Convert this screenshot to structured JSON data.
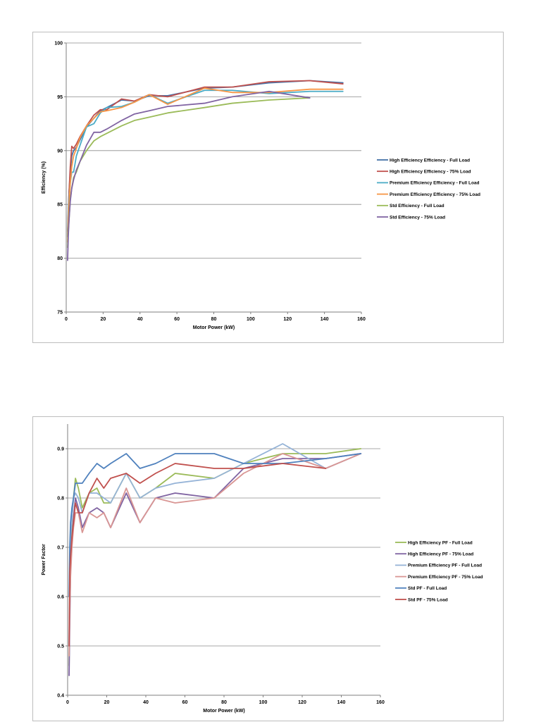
{
  "chart_data": [
    {
      "type": "line",
      "title": "",
      "xlabel": "Motor Power (kW)",
      "ylabel": "Efficiency (%)",
      "xlim": [
        0,
        160
      ],
      "ylim": [
        75,
        100
      ],
      "xticks": [
        0,
        20,
        40,
        60,
        80,
        100,
        120,
        140,
        160
      ],
      "yticks": [
        75,
        80,
        85,
        90,
        95,
        100
      ],
      "grid": "horizontal",
      "legend_position": "right",
      "series": [
        {
          "name": "High Efficiency Efficiency - Full Load",
          "color": "#4472a8",
          "points": [
            [
              0.75,
              82.5
            ],
            [
              1.1,
              84.5
            ],
            [
              1.5,
              86
            ],
            [
              2.2,
              88
            ],
            [
              3,
              89.5
            ],
            [
              4,
              90
            ],
            [
              5.5,
              90.3
            ],
            [
              7.5,
              91
            ],
            [
              11,
              92.2
            ],
            [
              15,
              93
            ],
            [
              18.5,
              93.7
            ],
            [
              22,
              94
            ],
            [
              30,
              94.7
            ],
            [
              37,
              94.6
            ],
            [
              45,
              95.1
            ],
            [
              55,
              95.1
            ],
            [
              75,
              95.8
            ],
            [
              90,
              95.9
            ],
            [
              110,
              96.3
            ],
            [
              132,
              96.5
            ],
            [
              150,
              96.3
            ]
          ]
        },
        {
          "name": "High Efficiency Efficiency - 75% Load",
          "color": "#c0504d",
          "points": [
            [
              0.75,
              82
            ],
            [
              1.1,
              84
            ],
            [
              1.5,
              86
            ],
            [
              2.2,
              88.5
            ],
            [
              3,
              90.4
            ],
            [
              4,
              90.2
            ],
            [
              5.5,
              90.6
            ],
            [
              7.5,
              91.3
            ],
            [
              11,
              92.3
            ],
            [
              15,
              93.3
            ],
            [
              18.5,
              93.8
            ],
            [
              22,
              93.8
            ],
            [
              30,
              94.8
            ],
            [
              37,
              94.6
            ],
            [
              45,
              95.2
            ],
            [
              55,
              95
            ],
            [
              75,
              95.9
            ],
            [
              90,
              95.9
            ],
            [
              110,
              96.4
            ],
            [
              132,
              96.5
            ],
            [
              150,
              96.2
            ]
          ]
        },
        {
          "name": "Premium Efficiency Efficiency - Full Load",
          "color": "#4bacc6",
          "points": [
            [
              0.75,
              82
            ],
            [
              1.1,
              84
            ],
            [
              1.5,
              85.5
            ],
            [
              2.2,
              87
            ],
            [
              3,
              88
            ],
            [
              4,
              88
            ],
            [
              5.5,
              89.5
            ],
            [
              7.5,
              90.5
            ],
            [
              11,
              92.2
            ],
            [
              15,
              92.5
            ],
            [
              18.5,
              93.5
            ],
            [
              22,
              94
            ],
            [
              30,
              94.1
            ],
            [
              37,
              94.5
            ],
            [
              45,
              95.2
            ],
            [
              55,
              94.4
            ],
            [
              75,
              95.6
            ],
            [
              90,
              95.6
            ],
            [
              110,
              95.3
            ],
            [
              132,
              95.5
            ],
            [
              150,
              95.5
            ]
          ]
        },
        {
          "name": "Premium Efficiency Efficiency - 75% Load",
          "color": "#f79646",
          "points": [
            [
              0.75,
              81.5
            ],
            [
              1.1,
              83.5
            ],
            [
              1.5,
              85
            ],
            [
              2.2,
              87
            ],
            [
              3,
              88.5
            ],
            [
              4,
              89.5
            ],
            [
              5.5,
              90.2
            ],
            [
              7.5,
              91.2
            ],
            [
              11,
              92.3
            ],
            [
              15,
              93
            ],
            [
              18.5,
              93.6
            ],
            [
              22,
              93.7
            ],
            [
              30,
              94
            ],
            [
              37,
              94.5
            ],
            [
              45,
              95.2
            ],
            [
              55,
              94.3
            ],
            [
              75,
              95.8
            ],
            [
              90,
              95.4
            ],
            [
              110,
              95.4
            ],
            [
              132,
              95.7
            ],
            [
              150,
              95.7
            ]
          ]
        },
        {
          "name": "Std Efficiency - Full Load",
          "color": "#9bbb59",
          "points": [
            [
              0.75,
              81
            ],
            [
              1.1,
              82.5
            ],
            [
              1.5,
              83.5
            ],
            [
              2.2,
              85.5
            ],
            [
              3,
              86.5
            ],
            [
              4,
              87.5
            ],
            [
              5.5,
              88
            ],
            [
              7.5,
              89
            ],
            [
              11,
              90
            ],
            [
              15,
              90.9
            ],
            [
              18.5,
              91.3
            ],
            [
              22,
              91.6
            ],
            [
              30,
              92.3
            ],
            [
              37,
              92.8
            ],
            [
              45,
              93.1
            ],
            [
              55,
              93.5
            ],
            [
              75,
              94
            ],
            [
              90,
              94.4
            ],
            [
              110,
              94.7
            ],
            [
              132,
              94.9
            ]
          ]
        },
        {
          "name": "Std Efficiency - 75% Load",
          "color": "#8064a2",
          "points": [
            [
              0.75,
              79.8
            ],
            [
              1.1,
              82
            ],
            [
              1.5,
              83.5
            ],
            [
              2.2,
              85.3
            ],
            [
              3,
              86.5
            ],
            [
              4,
              87.3
            ],
            [
              5.5,
              88.2
            ],
            [
              7.5,
              89
            ],
            [
              11,
              90.5
            ],
            [
              15,
              91.7
            ],
            [
              18.5,
              91.7
            ],
            [
              22,
              92
            ],
            [
              30,
              92.8
            ],
            [
              37,
              93.4
            ],
            [
              45,
              93.7
            ],
            [
              55,
              94.1
            ],
            [
              75,
              94.4
            ],
            [
              90,
              95
            ],
            [
              110,
              95.5
            ],
            [
              132,
              94.9
            ]
          ]
        }
      ]
    },
    {
      "type": "line",
      "title": "",
      "xlabel": "Motor Power (kW)",
      "ylabel": "Power Factor",
      "xlim": [
        0,
        160
      ],
      "ylim": [
        0.4,
        0.95
      ],
      "xticks": [
        0,
        20,
        40,
        60,
        80,
        100,
        120,
        140,
        160
      ],
      "yticks": [
        0.4,
        0.5,
        0.6,
        0.7,
        0.8,
        0.9
      ],
      "grid": "horizontal",
      "legend_position": "right",
      "series": [
        {
          "name": "High Efficiency PF - Full Load",
          "color": "#9bbb59",
          "points": [
            [
              0.75,
              0.46
            ],
            [
              1.1,
              0.6
            ],
            [
              1.5,
              0.7
            ],
            [
              2.2,
              0.76
            ],
            [
              3,
              0.8
            ],
            [
              4,
              0.84
            ],
            [
              5.5,
              0.82
            ],
            [
              7.5,
              0.78
            ],
            [
              11,
              0.81
            ],
            [
              15,
              0.82
            ],
            [
              18.5,
              0.79
            ],
            [
              22,
              0.79
            ],
            [
              30,
              0.85
            ],
            [
              37,
              0.8
            ],
            [
              45,
              0.82
            ],
            [
              55,
              0.85
            ],
            [
              75,
              0.84
            ],
            [
              90,
              0.87
            ],
            [
              110,
              0.89
            ],
            [
              132,
              0.89
            ],
            [
              150,
              0.9
            ]
          ]
        },
        {
          "name": "High Efficiency PF - 75% Load",
          "color": "#8064a2",
          "points": [
            [
              0.75,
              0.44
            ],
            [
              1.1,
              0.55
            ],
            [
              1.5,
              0.65
            ],
            [
              2.2,
              0.72
            ],
            [
              3,
              0.76
            ],
            [
              4,
              0.8
            ],
            [
              5.5,
              0.78
            ],
            [
              7.5,
              0.74
            ],
            [
              11,
              0.77
            ],
            [
              15,
              0.78
            ],
            [
              18.5,
              0.77
            ],
            [
              22,
              0.74
            ],
            [
              30,
              0.81
            ],
            [
              37,
              0.75
            ],
            [
              45,
              0.8
            ],
            [
              55,
              0.81
            ],
            [
              75,
              0.8
            ],
            [
              90,
              0.86
            ],
            [
              110,
              0.88
            ],
            [
              132,
              0.88
            ],
            [
              150,
              0.89
            ]
          ]
        },
        {
          "name": "Premium Efficiency PF - Full Load",
          "color": "#95b3d7",
          "points": [
            [
              0.75,
              0.5
            ],
            [
              1.1,
              0.62
            ],
            [
              1.5,
              0.72
            ],
            [
              2.2,
              0.76
            ],
            [
              3,
              0.8
            ],
            [
              4,
              0.81
            ],
            [
              5.5,
              0.8
            ],
            [
              7.5,
              0.77
            ],
            [
              11,
              0.81
            ],
            [
              15,
              0.81
            ],
            [
              18.5,
              0.8
            ],
            [
              22,
              0.79
            ],
            [
              30,
              0.85
            ],
            [
              37,
              0.8
            ],
            [
              45,
              0.82
            ],
            [
              55,
              0.83
            ],
            [
              75,
              0.84
            ],
            [
              90,
              0.87
            ],
            [
              110,
              0.91
            ],
            [
              132,
              0.86
            ],
            [
              150,
              0.89
            ]
          ]
        },
        {
          "name": "Premium Efficiency PF - 75% Load",
          "color": "#d99694",
          "points": [
            [
              0.75,
              0.48
            ],
            [
              1.1,
              0.58
            ],
            [
              1.5,
              0.64
            ],
            [
              2.2,
              0.7
            ],
            [
              3,
              0.74
            ],
            [
              4,
              0.77
            ],
            [
              5.5,
              0.77
            ],
            [
              7.5,
              0.73
            ],
            [
              11,
              0.77
            ],
            [
              15,
              0.76
            ],
            [
              18.5,
              0.77
            ],
            [
              22,
              0.74
            ],
            [
              30,
              0.82
            ],
            [
              37,
              0.75
            ],
            [
              45,
              0.8
            ],
            [
              55,
              0.79
            ],
            [
              75,
              0.8
            ],
            [
              90,
              0.85
            ],
            [
              110,
              0.89
            ],
            [
              132,
              0.86
            ],
            [
              150,
              0.89
            ]
          ]
        },
        {
          "name": "Std PF - Full Load",
          "color": "#4f81bd",
          "points": [
            [
              0.75,
              0.6
            ],
            [
              1.1,
              0.7
            ],
            [
              1.5,
              0.75
            ],
            [
              2.2,
              0.78
            ],
            [
              3,
              0.8
            ],
            [
              4,
              0.83
            ],
            [
              5.5,
              0.83
            ],
            [
              7.5,
              0.83
            ],
            [
              11,
              0.85
            ],
            [
              15,
              0.87
            ],
            [
              18.5,
              0.86
            ],
            [
              22,
              0.87
            ],
            [
              30,
              0.89
            ],
            [
              37,
              0.86
            ],
            [
              45,
              0.87
            ],
            [
              55,
              0.89
            ],
            [
              75,
              0.89
            ],
            [
              90,
              0.87
            ],
            [
              110,
              0.87
            ],
            [
              132,
              0.88
            ],
            [
              150,
              0.89
            ]
          ]
        },
        {
          "name": "Std PF - 75% Load",
          "color": "#c0504d",
          "points": [
            [
              0.75,
              0.5
            ],
            [
              1.1,
              0.65
            ],
            [
              1.5,
              0.68
            ],
            [
              2.2,
              0.72
            ],
            [
              3,
              0.75
            ],
            [
              4,
              0.79
            ],
            [
              5.5,
              0.77
            ],
            [
              7.5,
              0.77
            ],
            [
              11,
              0.81
            ],
            [
              15,
              0.84
            ],
            [
              18.5,
              0.82
            ],
            [
              22,
              0.84
            ],
            [
              30,
              0.85
            ],
            [
              37,
              0.83
            ],
            [
              45,
              0.85
            ],
            [
              55,
              0.87
            ],
            [
              75,
              0.86
            ],
            [
              90,
              0.86
            ],
            [
              110,
              0.87
            ],
            [
              132,
              0.86
            ]
          ]
        }
      ]
    }
  ]
}
